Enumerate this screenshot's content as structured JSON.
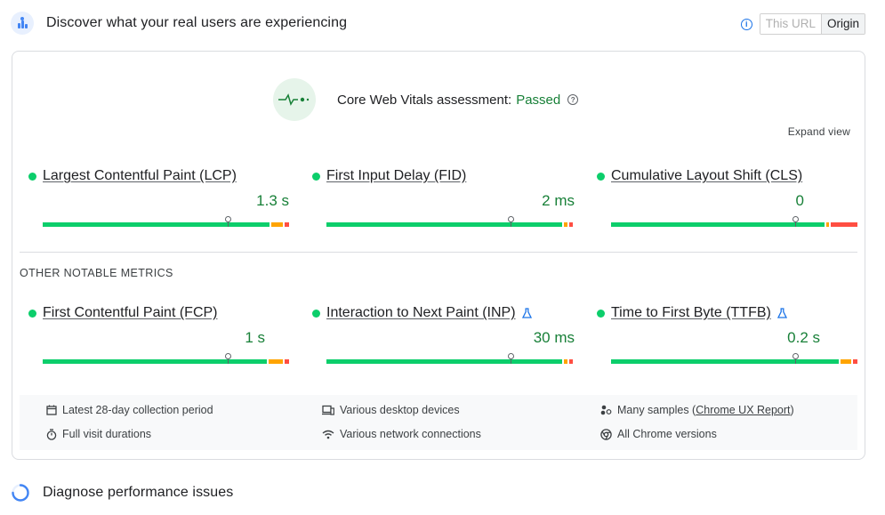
{
  "header": {
    "title": "Discover what your real users are experiencing",
    "toggle": {
      "this_url": "This URL",
      "origin": "Origin",
      "selected": "Origin"
    }
  },
  "assessment": {
    "label": "Core Web Vitals assessment:",
    "status": "Passed",
    "expand_view": "Expand view"
  },
  "core_metrics": [
    {
      "name": "Largest Contentful Paint (LCP)",
      "value": "1.3 s",
      "status": "good",
      "experimental": false
    },
    {
      "name": "First Input Delay (FID)",
      "value": "2 ms",
      "status": "good",
      "experimental": false
    },
    {
      "name": "Cumulative Layout Shift (CLS)",
      "value": "0",
      "status": "good",
      "experimental": false
    }
  ],
  "other_label": "OTHER NOTABLE METRICS",
  "other_metrics": [
    {
      "name": "First Contentful Paint (FCP)",
      "value": "1 s",
      "status": "good",
      "experimental": false
    },
    {
      "name": "Interaction to Next Paint (INP)",
      "value": "30 ms",
      "status": "good",
      "experimental": true
    },
    {
      "name": "Time to First Byte (TTFB)",
      "value": "0.2 s",
      "status": "good",
      "experimental": true
    }
  ],
  "footer": {
    "collection_period": "Latest 28-day collection period",
    "visit_durations": "Full visit durations",
    "devices": "Various desktop devices",
    "network": "Various network connections",
    "samples_prefix": "Many samples (",
    "samples_link": "Chrome UX Report",
    "samples_suffix": ")",
    "versions": "All Chrome versions"
  },
  "diagnose": {
    "title": "Diagnose performance issues"
  },
  "colors": {
    "good": "#0cce6b",
    "needs_improvement": "#ffa400",
    "poor": "#ff4e42",
    "passed_text": "#188038",
    "accent": "#1a73e8"
  }
}
